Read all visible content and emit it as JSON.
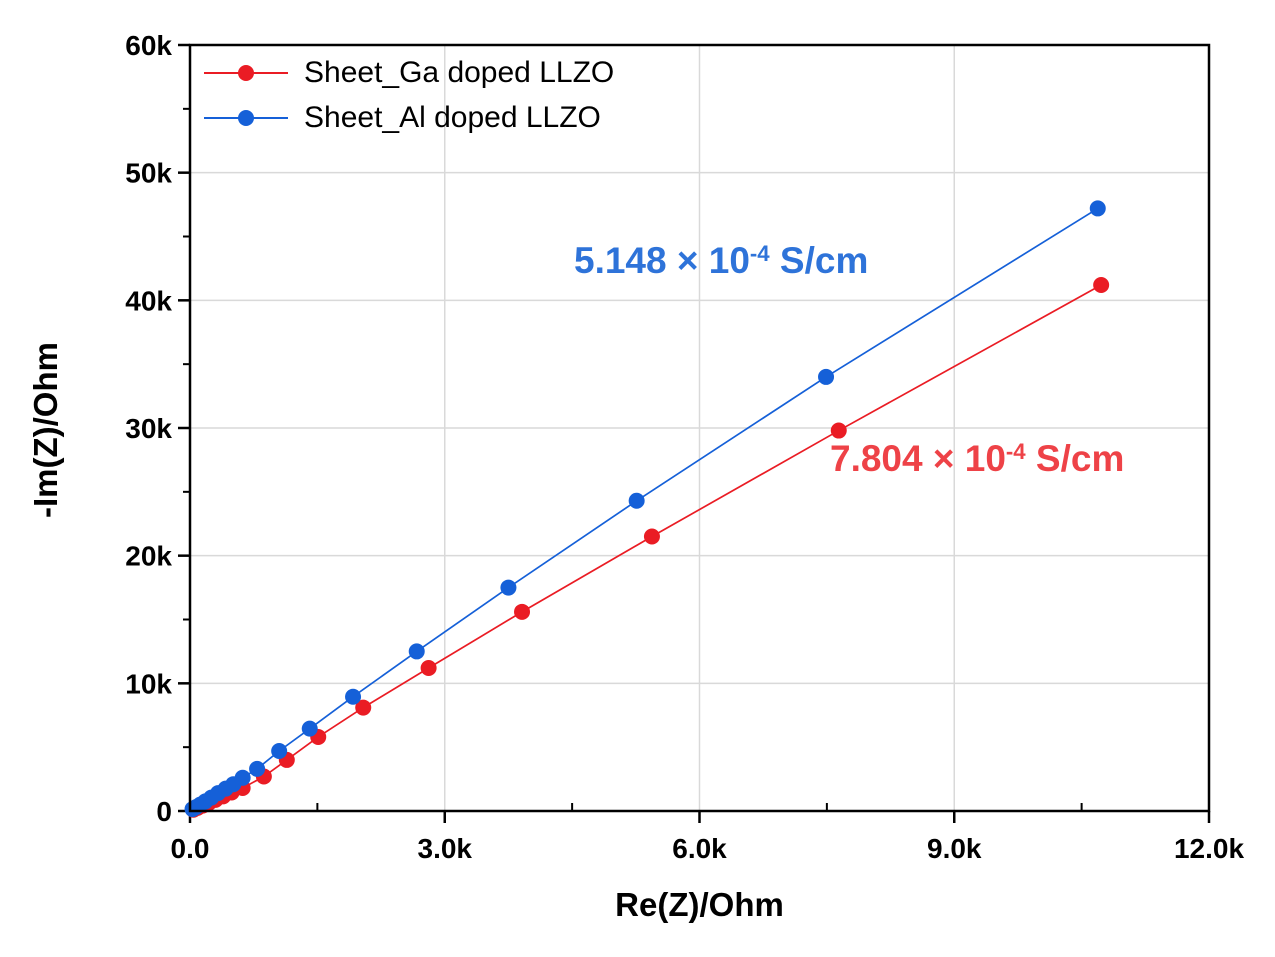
{
  "figure": {
    "background": "#ffffff",
    "grid_color": "#d9d9d9",
    "axis_color": "#000000",
    "text_color": "#000000"
  },
  "axes": {
    "x": {
      "title": "Re(Z)/Ohm",
      "min": 0,
      "max": 12000,
      "major_ticks": [
        0,
        3000,
        6000,
        9000,
        12000
      ],
      "tick_labels": [
        "0.0",
        "3.0k",
        "6.0k",
        "9.0k",
        "12.0k"
      ],
      "minor_ticks": [
        1500,
        4500,
        7500,
        10500
      ]
    },
    "y": {
      "title": "-Im(Z)/Ohm",
      "min": 0,
      "max": 60000,
      "major_ticks": [
        0,
        10000,
        20000,
        30000,
        40000,
        50000,
        60000
      ],
      "tick_labels": [
        "0",
        "10k",
        "20k",
        "30k",
        "40k",
        "50k",
        "60k"
      ],
      "minor_ticks": [
        5000,
        15000,
        25000,
        35000,
        45000,
        55000
      ]
    }
  },
  "chart_data": {
    "type": "scatter",
    "line_connected": true,
    "title": "",
    "xlabel": "Re(Z)/Ohm",
    "ylabel": "-Im(Z)/Ohm",
    "xlim": [
      0,
      12000
    ],
    "ylim": [
      0,
      60000
    ],
    "grid": true,
    "legend_position": "top-left-inside",
    "series": [
      {
        "name": "Sheet_Ga doped LLZO",
        "color": "#ea1c24",
        "x": [
          40,
          90,
          150,
          220,
          300,
          390,
          490,
          620,
          870,
          1140,
          1510,
          2040,
          2810,
          3910,
          5440,
          7640,
          10730
        ],
        "y": [
          100,
          250,
          420,
          620,
          870,
          1150,
          1450,
          1800,
          2700,
          4000,
          5800,
          8100,
          11200,
          15600,
          21500,
          29800,
          41200
        ]
      },
      {
        "name": "Sheet_Al doped LLZO",
        "color": "#1560d8",
        "x": [
          30,
          70,
          120,
          180,
          250,
          330,
          420,
          510,
          620,
          790,
          1050,
          1410,
          1920,
          2670,
          3750,
          5260,
          7490,
          10690
        ],
        "y": [
          150,
          300,
          500,
          750,
          1050,
          1400,
          1750,
          2100,
          2600,
          3300,
          4700,
          6450,
          8950,
          12500,
          17500,
          24300,
          34000,
          47200
        ]
      }
    ],
    "annotations": [
      {
        "text": "5.148 × 10⁻⁴ S/cm",
        "prefix": "5.148 × 10",
        "sup": "-4",
        "suffix": " S/cm",
        "color": "#2e73d9",
        "x": 574,
        "y": 240
      },
      {
        "text": "7.804 × 10⁻⁴ S/cm",
        "prefix": "7.804 × 10",
        "sup": "-4",
        "suffix": " S/cm",
        "color": "#ee4247",
        "x": 830,
        "y": 438
      }
    ]
  },
  "legend": {
    "items": [
      {
        "label": "Sheet_Ga doped LLZO",
        "color": "#ea1c24"
      },
      {
        "label": "Sheet_Al doped LLZO",
        "color": "#1560d8"
      }
    ]
  }
}
